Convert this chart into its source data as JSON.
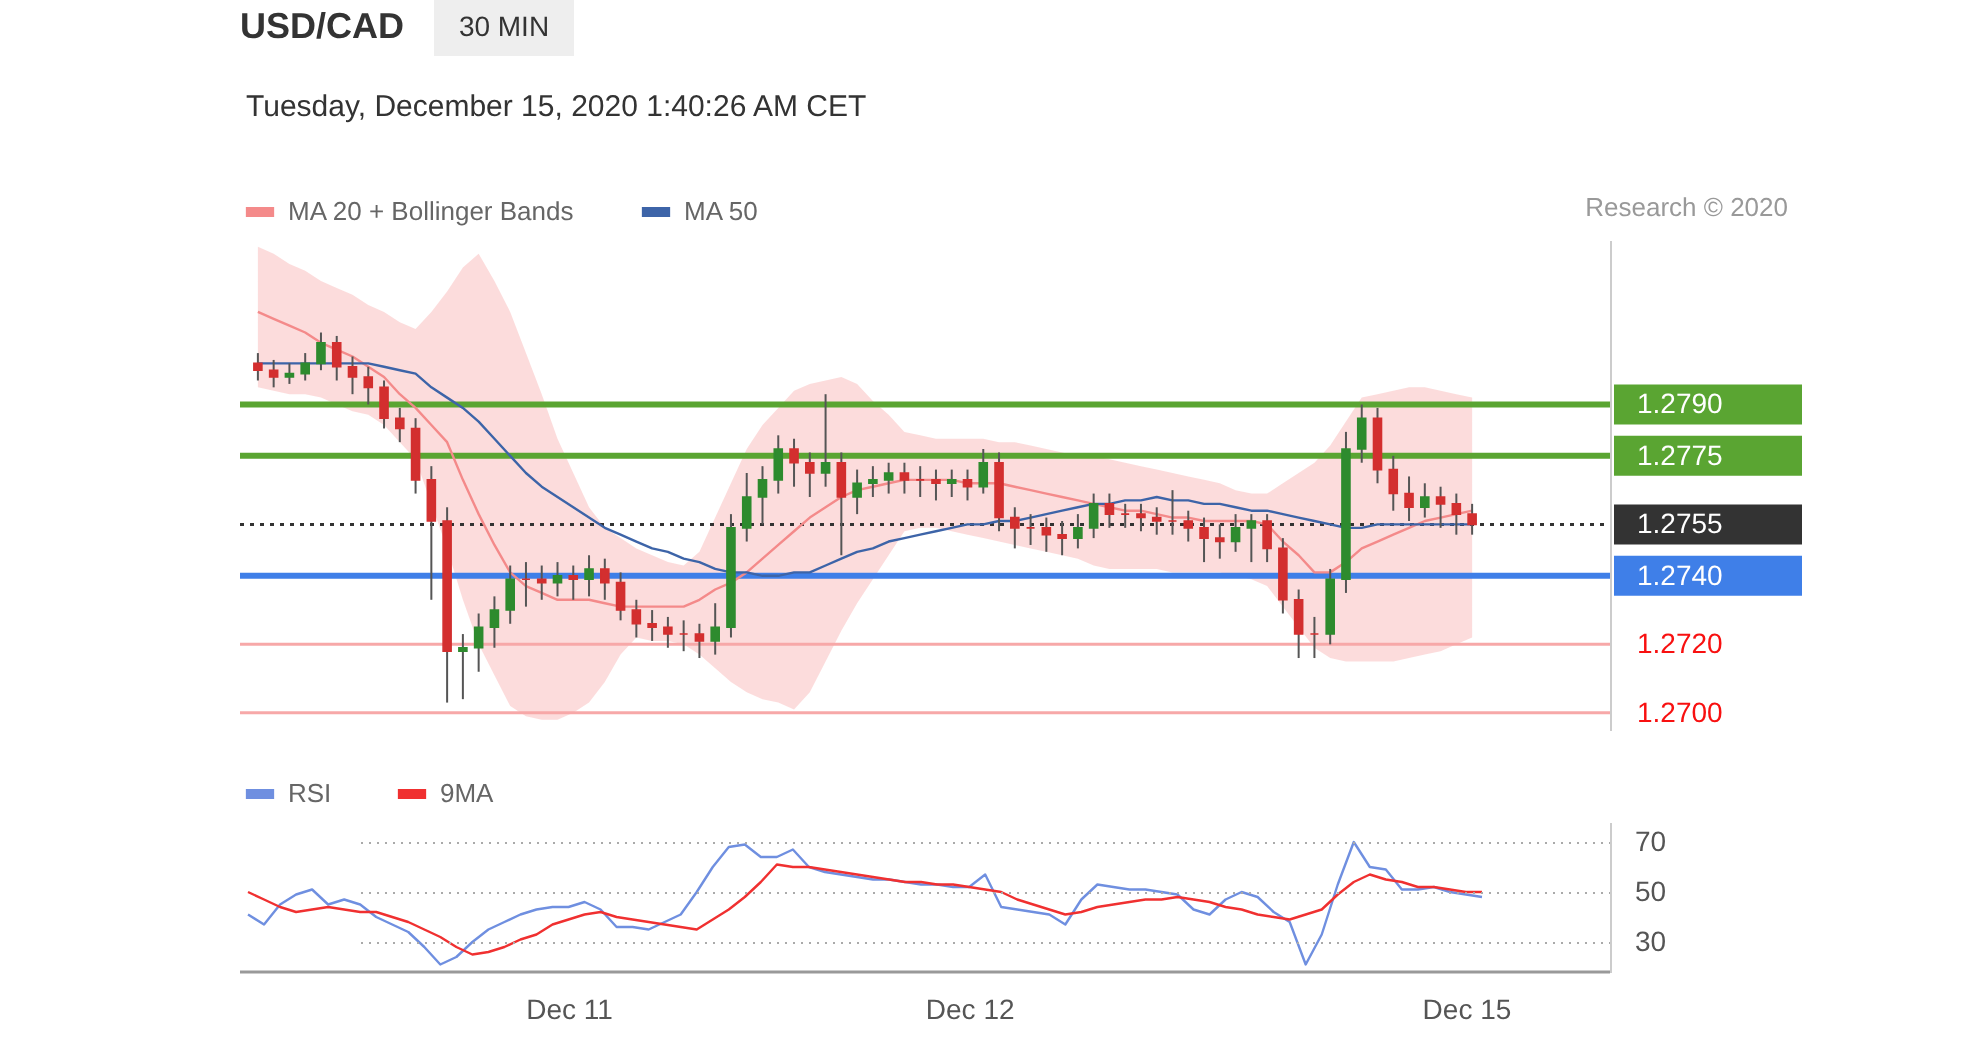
{
  "chart_data": [
    {
      "type": "candlestick",
      "title": "USD/CAD",
      "subtitle": "Tuesday, December 15, 2020 1:40:26 AM CET",
      "annotations": [
        "30 MIN",
        "Research © 2020"
      ],
      "categories": [
        null,
        null,
        null,
        null,
        null,
        null,
        null,
        null,
        null,
        null,
        null,
        null,
        null,
        null,
        null,
        null,
        null,
        null,
        null,
        null,
        null,
        null,
        null,
        null,
        null,
        null,
        null,
        null,
        null,
        null,
        null,
        null,
        null,
        null,
        null,
        null,
        null,
        null,
        null,
        null,
        null,
        null,
        null,
        null,
        null,
        null,
        null,
        null,
        null,
        null,
        null,
        null,
        null,
        null,
        null,
        null,
        null,
        null,
        null,
        null,
        null,
        null,
        null,
        null,
        null,
        null,
        null,
        null,
        null,
        null,
        null,
        null,
        null,
        null,
        null,
        null,
        null,
        null
      ],
      "ohlc": [
        [
          1.2802,
          1.2805,
          1.2797,
          1.28
        ],
        [
          1.28,
          1.2803,
          1.2795,
          1.2798
        ],
        [
          1.2798,
          1.2802,
          1.2796,
          1.2799
        ],
        [
          1.2799,
          1.2805,
          1.2797,
          1.2802
        ],
        [
          1.2802,
          1.2811,
          1.28,
          1.2808
        ],
        [
          1.2808,
          1.281,
          1.2797,
          1.2801
        ],
        [
          1.2801,
          1.2804,
          1.2793,
          1.2798
        ],
        [
          1.2798,
          1.2801,
          1.279,
          1.2795
        ],
        [
          1.2795,
          1.2797,
          1.2783,
          1.2786
        ],
        [
          1.2786,
          1.2789,
          1.2779,
          1.2783
        ],
        [
          1.2783,
          1.2786,
          1.2764,
          1.2768
        ],
        [
          1.2768,
          1.2772,
          1.2733,
          1.2756
        ],
        [
          1.2756,
          1.276,
          1.2703,
          1.2718
        ],
        [
          1.2718,
          1.2723,
          1.2704,
          1.2719
        ],
        [
          1.2719,
          1.2729,
          1.2712,
          1.2725
        ],
        [
          1.2725,
          1.2734,
          1.2719,
          1.273
        ],
        [
          1.273,
          1.2743,
          1.2726,
          1.2739
        ],
        [
          1.2739,
          1.2744,
          1.2731,
          1.2739
        ],
        [
          1.2739,
          1.2743,
          1.2733,
          1.2738
        ],
        [
          1.2738,
          1.2744,
          1.2734,
          1.274
        ],
        [
          1.274,
          1.2743,
          1.2733,
          1.2739
        ],
        [
          1.2739,
          1.2746,
          1.2734,
          1.2742
        ],
        [
          1.2742,
          1.2745,
          1.2733,
          1.2738
        ],
        [
          1.2738,
          1.2741,
          1.2727,
          1.273
        ],
        [
          1.273,
          1.2733,
          1.2722,
          1.2726
        ],
        [
          1.2726,
          1.273,
          1.2721,
          1.2725
        ],
        [
          1.2725,
          1.2728,
          1.2719,
          1.2723
        ],
        [
          1.2723,
          1.2727,
          1.2718,
          1.2723
        ],
        [
          1.2723,
          1.2726,
          1.2716,
          1.2721
        ],
        [
          1.2721,
          1.2732,
          1.2717,
          1.2725
        ],
        [
          1.2725,
          1.2758,
          1.2722,
          1.2754
        ],
        [
          1.2754,
          1.277,
          1.275,
          1.2763
        ],
        [
          1.2763,
          1.2772,
          1.2755,
          1.2768
        ],
        [
          1.2768,
          1.2781,
          1.2764,
          1.2777
        ],
        [
          1.2777,
          1.278,
          1.2766,
          1.2773
        ],
        [
          1.2773,
          1.2776,
          1.2763,
          1.277
        ],
        [
          1.277,
          1.2793,
          1.2766,
          1.2773
        ],
        [
          1.2773,
          1.2776,
          1.2746,
          1.2763
        ],
        [
          1.2763,
          1.2771,
          1.2758,
          1.2767
        ],
        [
          1.2767,
          1.2772,
          1.2763,
          1.2768
        ],
        [
          1.2768,
          1.2773,
          1.2764,
          1.277
        ],
        [
          1.277,
          1.2773,
          1.2764,
          1.2768
        ],
        [
          1.2768,
          1.2772,
          1.2763,
          1.2768
        ],
        [
          1.2768,
          1.2771,
          1.2762,
          1.2767
        ],
        [
          1.2767,
          1.2771,
          1.2763,
          1.2768
        ],
        [
          1.2768,
          1.2771,
          1.2762,
          1.2766
        ],
        [
          1.2766,
          1.2777,
          1.2764,
          1.2773
        ],
        [
          1.2773,
          1.2776,
          1.2753,
          1.2757
        ],
        [
          1.2757,
          1.276,
          1.2748,
          1.2754
        ],
        [
          1.2754,
          1.2758,
          1.2749,
          1.2754
        ],
        [
          1.2754,
          1.2757,
          1.2747,
          1.2752
        ],
        [
          1.2752,
          1.2756,
          1.2746,
          1.2751
        ],
        [
          1.2751,
          1.2758,
          1.2748,
          1.2754
        ],
        [
          1.2754,
          1.2764,
          1.2751,
          1.2761
        ],
        [
          1.2761,
          1.2764,
          1.2754,
          1.2758
        ],
        [
          1.2758,
          1.2761,
          1.2754,
          1.2758
        ],
        [
          1.2758,
          1.2761,
          1.2753,
          1.2757
        ],
        [
          1.2757,
          1.276,
          1.2752,
          1.2756
        ],
        [
          1.2756,
          1.2765,
          1.2752,
          1.2756
        ],
        [
          1.2756,
          1.2759,
          1.275,
          1.2754
        ],
        [
          1.2754,
          1.2757,
          1.2744,
          1.2751
        ],
        [
          1.2751,
          1.2755,
          1.2745,
          1.275
        ],
        [
          1.275,
          1.2758,
          1.2747,
          1.2754
        ],
        [
          1.2754,
          1.2758,
          1.2744,
          1.2756
        ],
        [
          1.2756,
          1.2758,
          1.2744,
          1.2748
        ],
        [
          1.2748,
          1.2751,
          1.2729,
          1.2733
        ],
        [
          1.2733,
          1.2736,
          1.2716,
          1.2723
        ],
        [
          1.2723,
          1.2728,
          1.2716,
          1.2723
        ],
        [
          1.2723,
          1.2742,
          1.272,
          1.2739
        ],
        [
          1.2739,
          1.2782,
          1.2735,
          1.2777
        ],
        [
          1.2777,
          1.279,
          1.2773,
          1.2786
        ],
        [
          1.2786,
          1.2789,
          1.2767,
          1.2771
        ],
        [
          1.2771,
          1.2775,
          1.2759,
          1.2764
        ],
        [
          1.2764,
          1.2769,
          1.2756,
          1.276
        ],
        [
          1.276,
          1.2767,
          1.2757,
          1.2763
        ],
        [
          1.2763,
          1.2766,
          1.2754,
          1.2761
        ],
        [
          1.2761,
          1.2764,
          1.2752,
          1.2758
        ],
        [
          1.2758,
          1.2761,
          1.2752,
          1.2755
        ]
      ],
      "colors": [
        "#d32f2f",
        "#d32f2f",
        "#2e8b2e",
        "#2e8b2e",
        "#2e8b2e",
        "#d32f2f",
        "#d32f2f",
        "#d32f2f",
        "#d32f2f",
        "#d32f2f",
        "#d32f2f",
        "#d32f2f",
        "#d32f2f",
        "#2e8b2e",
        "#2e8b2e",
        "#2e8b2e",
        "#2e8b2e",
        "#d32f2f",
        "#d32f2f",
        "#2e8b2e",
        "#d32f2f",
        "#2e8b2e",
        "#d32f2f",
        "#d32f2f",
        "#d32f2f",
        "#d32f2f",
        "#d32f2f",
        "#d32f2f",
        "#d32f2f",
        "#2e8b2e",
        "#2e8b2e",
        "#2e8b2e",
        "#2e8b2e",
        "#2e8b2e",
        "#d32f2f",
        "#d32f2f",
        "#2e8b2e",
        "#d32f2f",
        "#2e8b2e",
        "#2e8b2e",
        "#2e8b2e",
        "#d32f2f",
        "#d32f2f",
        "#d32f2f",
        "#2e8b2e",
        "#d32f2f",
        "#2e8b2e",
        "#d32f2f",
        "#d32f2f",
        "#d32f2f",
        "#d32f2f",
        "#d32f2f",
        "#2e8b2e",
        "#2e8b2e",
        "#d32f2f",
        "#d32f2f",
        "#d32f2f",
        "#d32f2f",
        "#d32f2f",
        "#d32f2f",
        "#d32f2f",
        "#d32f2f",
        "#2e8b2e",
        "#2e8b2e",
        "#d32f2f",
        "#d32f2f",
        "#d32f2f",
        "#d32f2f",
        "#2e8b2e",
        "#2e8b2e",
        "#2e8b2e",
        "#d32f2f",
        "#d32f2f",
        "#d32f2f",
        "#2e8b2e",
        "#d32f2f",
        "#d32f2f",
        "#d32f2f"
      ],
      "series": [
        {
          "name": "MA 20 + Bollinger Bands",
          "type": "line",
          "color": "#f48a8a",
          "values": [
            1.2817,
            1.2815,
            1.2813,
            1.2811,
            1.2808,
            1.2806,
            1.2804,
            1.2801,
            1.2798,
            1.2793,
            1.2789,
            1.2784,
            1.2779,
            1.2768,
            1.2758,
            1.2749,
            1.2741,
            1.2737,
            1.2735,
            1.2733,
            1.2733,
            1.2733,
            1.2732,
            1.2731,
            1.2731,
            1.2731,
            1.2731,
            1.2731,
            1.2733,
            1.2736,
            1.2738,
            1.2741,
            1.2745,
            1.2749,
            1.2753,
            1.2757,
            1.276,
            1.2763,
            1.2765,
            1.2766,
            1.2767,
            1.2768,
            1.2768,
            1.2768,
            1.2768,
            1.2767,
            1.2767,
            1.2767,
            1.2766,
            1.2765,
            1.2764,
            1.2763,
            1.2762,
            1.2761,
            1.276,
            1.2759,
            1.2759,
            1.2758,
            1.2757,
            1.2757,
            1.2756,
            1.2756,
            1.2756,
            1.2756,
            1.2755,
            1.275,
            1.2746,
            1.2741,
            1.2741,
            1.2744,
            1.2748,
            1.275,
            1.2752,
            1.2754,
            1.2756,
            1.2757,
            1.2758,
            1.2759
          ],
          "lower": [
            1.2795,
            1.2794,
            1.2793,
            1.2793,
            1.2792,
            1.279,
            1.2788,
            1.2787,
            1.2784,
            1.2779,
            1.2774,
            1.2761,
            1.2748,
            1.2733,
            1.272,
            1.2711,
            1.2702,
            1.2699,
            1.2698,
            1.2698,
            1.27,
            1.2703,
            1.2709,
            1.2717,
            1.2722,
            1.2721,
            1.2721,
            1.272,
            1.2717,
            1.2713,
            1.2709,
            1.2706,
            1.2704,
            1.2703,
            1.2701,
            1.2706,
            1.2715,
            1.2724,
            1.2732,
            1.2739,
            1.2746,
            1.2753,
            1.2754,
            1.2754,
            1.2753,
            1.2752,
            1.2751,
            1.275,
            1.2749,
            1.2748,
            1.2747,
            1.2746,
            1.2745,
            1.2743,
            1.2742,
            1.2742,
            1.2742,
            1.2742,
            1.2741,
            1.2741,
            1.2741,
            1.2741,
            1.274,
            1.2739,
            1.2737,
            1.2731,
            1.2725,
            1.2719,
            1.2716,
            1.2715,
            1.2715,
            1.2715,
            1.2715,
            1.2716,
            1.2717,
            1.2718,
            1.272,
            1.2722
          ],
          "upper": [
            1.2836,
            1.2834,
            1.2831,
            1.2829,
            1.2826,
            1.2824,
            1.2822,
            1.2819,
            1.2817,
            1.2814,
            1.2812,
            1.2817,
            1.2823,
            1.283,
            1.2834,
            1.2826,
            1.2817,
            1.2805,
            1.2793,
            1.278,
            1.277,
            1.276,
            1.2754,
            1.2751,
            1.2748,
            1.2746,
            1.2744,
            1.2743,
            1.2747,
            1.2757,
            1.2767,
            1.2777,
            1.2784,
            1.2789,
            1.2794,
            1.2796,
            1.2797,
            1.2798,
            1.2796,
            1.2791,
            1.2787,
            1.2782,
            1.2781,
            1.278,
            1.278,
            1.278,
            1.278,
            1.2779,
            1.2779,
            1.2778,
            1.2777,
            1.2776,
            1.2775,
            1.2775,
            1.2774,
            1.2773,
            1.2772,
            1.2771,
            1.277,
            1.2769,
            1.2768,
            1.2767,
            1.2765,
            1.2764,
            1.2764,
            1.2767,
            1.277,
            1.2773,
            1.2778,
            1.2785,
            1.2792,
            1.2793,
            1.2794,
            1.2795,
            1.2795,
            1.2794,
            1.2793,
            1.2792
          ]
        },
        {
          "name": "MA 50",
          "type": "line",
          "color": "#3d64a8",
          "values": [
            1.2802,
            1.2802,
            1.2802,
            1.2802,
            1.2802,
            1.2802,
            1.2802,
            1.2802,
            1.2801,
            1.28,
            1.2799,
            1.2795,
            1.2792,
            1.2789,
            1.2785,
            1.278,
            1.2775,
            1.277,
            1.2766,
            1.2763,
            1.276,
            1.2757,
            1.2754,
            1.2752,
            1.275,
            1.2748,
            1.2747,
            1.2745,
            1.2744,
            1.2742,
            1.2741,
            1.2741,
            1.274,
            1.274,
            1.2741,
            1.2741,
            1.2743,
            1.2745,
            1.2747,
            1.2748,
            1.275,
            1.2751,
            1.2752,
            1.2753,
            1.2754,
            1.2755,
            1.2755,
            1.2756,
            1.2756,
            1.2757,
            1.2758,
            1.2759,
            1.276,
            1.2761,
            1.2761,
            1.2762,
            1.2762,
            1.2763,
            1.2762,
            1.2762,
            1.2761,
            1.2761,
            1.276,
            1.2759,
            1.2759,
            1.2758,
            1.2757,
            1.2756,
            1.2755,
            1.2754,
            1.2754,
            1.2755,
            1.2755,
            1.2755,
            1.2755,
            1.2755,
            1.2755,
            1.2755
          ]
        }
      ],
      "ref_lines": [
        {
          "axis": "y",
          "value": 1.279,
          "color": "#5aa532",
          "line_style": "solid"
        },
        {
          "axis": "y",
          "value": 1.2775,
          "color": "#5aa532",
          "line_style": "solid"
        },
        {
          "axis": "y",
          "value": 1.2755,
          "color": "#333333",
          "line_style": "dotted"
        },
        {
          "axis": "y",
          "value": 1.274,
          "color": "#3f7fe8",
          "line_style": "solid"
        },
        {
          "axis": "y",
          "value": 1.272,
          "color": "#f7a8a8",
          "line_style": "solid"
        },
        {
          "axis": "y",
          "value": 1.27,
          "color": "#f7a8a8",
          "line_style": "solid"
        }
      ],
      "yticks": [
        {
          "value": 1.27,
          "label": "1.2700"
        },
        {
          "value": 1.272,
          "label": "1.2720"
        },
        {
          "value": 1.274,
          "label": "1.2740"
        },
        {
          "value": 1.2755,
          "label": "1.2755"
        },
        {
          "value": 1.2775,
          "label": "1.2775"
        },
        {
          "value": 1.279,
          "label": "1.2790"
        }
      ],
      "ylim": [
        1.2695,
        1.2838
      ],
      "legend": "top left",
      "tick_labels": "y"
    },
    {
      "type": "line",
      "categories": [
        null,
        null,
        null,
        null,
        null,
        null,
        null,
        null,
        null,
        null,
        null,
        null,
        null,
        null,
        null,
        null,
        null,
        null,
        null,
        null,
        "Dec 11",
        null,
        null,
        null,
        null,
        null,
        null,
        null,
        null,
        null,
        null,
        null,
        null,
        null,
        null,
        null,
        null,
        null,
        null,
        null,
        null,
        null,
        null,
        null,
        null,
        "Dec 12",
        null,
        null,
        null,
        null,
        null,
        null,
        null,
        null,
        null,
        null,
        null,
        null,
        null,
        null,
        null,
        null,
        null,
        null,
        null,
        null,
        null,
        null,
        null,
        null,
        null,
        null,
        null,
        null,
        null,
        null,
        "Dec 15",
        null
      ],
      "series": [
        {
          "name": "RSI",
          "color": "#6f8fe0",
          "values": [
            41,
            37,
            45,
            49,
            51,
            45,
            47,
            45,
            40,
            37,
            34,
            28,
            21,
            24,
            30,
            35,
            38,
            41,
            43,
            44,
            44,
            46,
            43,
            36,
            36,
            35,
            38,
            41,
            50,
            60,
            68,
            69,
            64,
            64,
            67,
            60,
            58,
            57,
            56,
            55,
            55,
            54,
            53,
            53,
            52,
            52,
            57,
            44,
            43,
            42,
            41,
            37,
            47,
            53,
            52,
            51,
            51,
            50,
            49,
            43,
            41,
            47,
            50,
            48,
            42,
            38,
            21,
            33,
            53,
            70,
            60,
            59,
            51,
            51,
            52,
            50,
            49,
            48
          ]
        },
        {
          "name": "9MA",
          "color": "#f03030",
          "values": [
            50,
            47,
            44,
            42,
            43,
            44,
            43,
            42,
            42,
            40,
            38,
            35,
            32,
            28,
            25,
            26,
            28,
            31,
            33,
            37,
            39,
            41,
            42,
            40,
            39,
            38,
            37,
            36,
            35,
            39,
            43,
            48,
            54,
            61,
            60,
            60,
            59,
            58,
            57,
            56,
            55,
            54,
            54,
            53,
            53,
            52,
            51,
            50,
            47,
            45,
            43,
            41,
            42,
            44,
            45,
            46,
            47,
            47,
            48,
            47,
            46,
            44,
            43,
            41,
            40,
            39,
            41,
            43,
            49,
            54,
            57,
            55,
            54,
            52,
            52,
            51,
            50,
            50
          ]
        }
      ],
      "ylim": [
        18,
        78
      ],
      "yticks": [
        30,
        50,
        70
      ],
      "grid": "y",
      "legend": "top left"
    }
  ]
}
